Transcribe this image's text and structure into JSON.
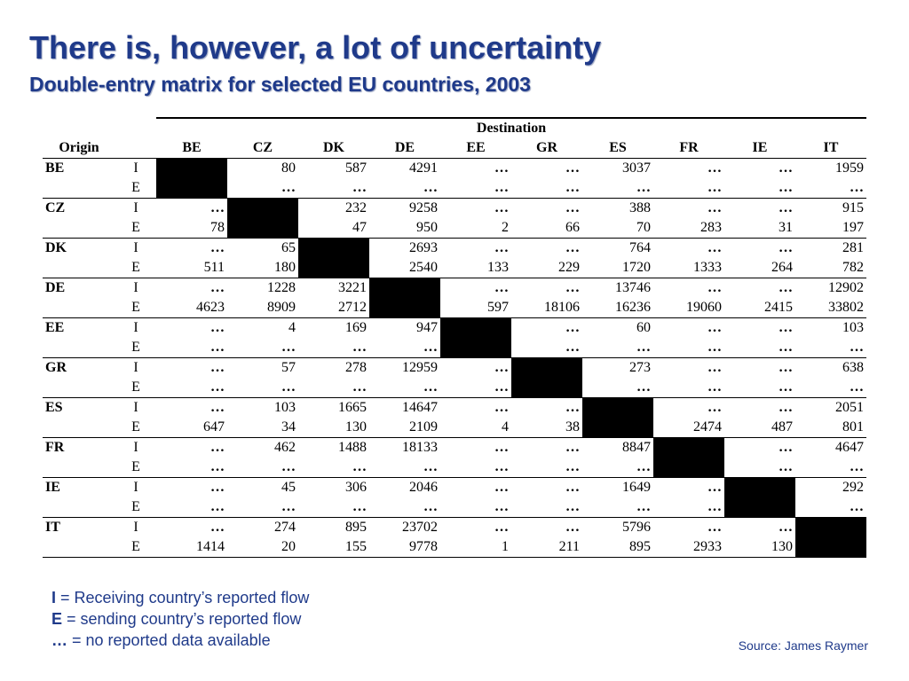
{
  "slide": {
    "title": "There is, however, a lot of uncertainty",
    "subtitle": "Double-entry matrix for selected EU countries, 2003"
  },
  "table": {
    "destination_label": "Destination",
    "origin_label": "Origin",
    "columns": [
      "BE",
      "CZ",
      "DK",
      "DE",
      "EE",
      "GR",
      "ES",
      "FR",
      "IE",
      "IT"
    ],
    "rows": [
      {
        "origin": "BE",
        "I": [
          "",
          "80",
          "587",
          "4291",
          "…",
          "…",
          "3037",
          "…",
          "…",
          "1959"
        ],
        "E": [
          "",
          "…",
          "…",
          "…",
          "…",
          "…",
          "…",
          "…",
          "…",
          "…"
        ]
      },
      {
        "origin": "CZ",
        "I": [
          "…",
          "",
          "232",
          "9258",
          "…",
          "…",
          "388",
          "…",
          "…",
          "915"
        ],
        "E": [
          "78",
          "",
          "47",
          "950",
          "2",
          "66",
          "70",
          "283",
          "31",
          "197"
        ]
      },
      {
        "origin": "DK",
        "I": [
          "…",
          "65",
          "",
          "2693",
          "…",
          "…",
          "764",
          "…",
          "…",
          "281"
        ],
        "E": [
          "511",
          "180",
          "",
          "2540",
          "133",
          "229",
          "1720",
          "1333",
          "264",
          "782"
        ]
      },
      {
        "origin": "DE",
        "I": [
          "…",
          "1228",
          "3221",
          "",
          "…",
          "…",
          "13746",
          "…",
          "…",
          "12902"
        ],
        "E": [
          "4623",
          "8909",
          "2712",
          "",
          "597",
          "18106",
          "16236",
          "19060",
          "2415",
          "33802"
        ]
      },
      {
        "origin": "EE",
        "I": [
          "…",
          "4",
          "169",
          "947",
          "",
          "…",
          "60",
          "…",
          "…",
          "103"
        ],
        "E": [
          "…",
          "…",
          "…",
          "…",
          "",
          "…",
          "…",
          "…",
          "…",
          "…"
        ]
      },
      {
        "origin": "GR",
        "I": [
          "…",
          "57",
          "278",
          "12959",
          "…",
          "",
          "273",
          "…",
          "…",
          "638"
        ],
        "E": [
          "…",
          "…",
          "…",
          "…",
          "…",
          "",
          "…",
          "…",
          "…",
          "…"
        ]
      },
      {
        "origin": "ES",
        "I": [
          "…",
          "103",
          "1665",
          "14647",
          "…",
          "…",
          "",
          "…",
          "…",
          "2051"
        ],
        "E": [
          "647",
          "34",
          "130",
          "2109",
          "4",
          "38",
          "",
          "2474",
          "487",
          "801"
        ]
      },
      {
        "origin": "FR",
        "I": [
          "…",
          "462",
          "1488",
          "18133",
          "…",
          "…",
          "8847",
          "",
          "…",
          "4647"
        ],
        "E": [
          "…",
          "…",
          "…",
          "…",
          "…",
          "…",
          "…",
          "",
          "…",
          "…"
        ]
      },
      {
        "origin": "IE",
        "I": [
          "…",
          "45",
          "306",
          "2046",
          "…",
          "…",
          "1649",
          "…",
          "",
          "292"
        ],
        "E": [
          "…",
          "…",
          "…",
          "…",
          "…",
          "…",
          "…",
          "…",
          "",
          "…"
        ]
      },
      {
        "origin": "IT",
        "I": [
          "…",
          "274",
          "895",
          "23702",
          "…",
          "…",
          "5796",
          "…",
          "…",
          ""
        ],
        "E": [
          "1414",
          "20",
          "155",
          "9778",
          "1",
          "211",
          "895",
          "2933",
          "130",
          ""
        ]
      }
    ]
  },
  "legend": [
    {
      "symbol": "I",
      "text": " = Receiving country’s reported flow"
    },
    {
      "symbol": "E",
      "text": " = sending country’s reported flow"
    },
    {
      "symbol": "…",
      "text": " = no reported data available"
    }
  ],
  "source": "Source: James Raymer",
  "colors": {
    "title": "#1f3a8a",
    "diagonal": "#000000"
  }
}
